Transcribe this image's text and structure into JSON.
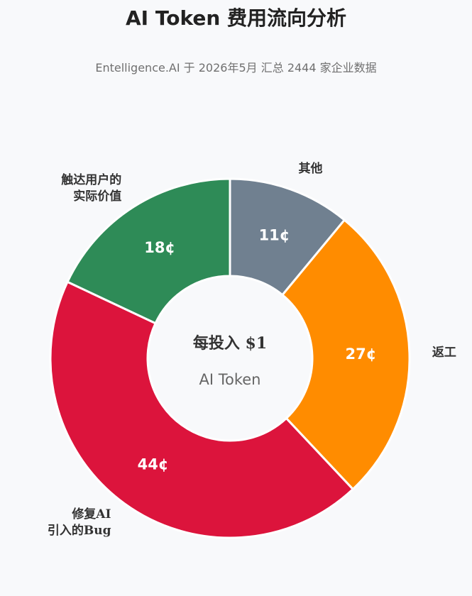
{
  "chart_data": {
    "type": "pie",
    "title": "AI Token 费用流向分析",
    "subtitle": "Entelligence.AI 于 2026年5月 汇总 2444 家企业数据",
    "center_label": "每投入 $1",
    "center_sublabel": "AI Token",
    "unit": "¢",
    "slices": [
      {
        "label": [
          "其他"
        ],
        "value": 11,
        "display": "11¢",
        "color": "#708090"
      },
      {
        "label": [
          "返工"
        ],
        "value": 27,
        "display": "27¢",
        "color": "#ff8c00"
      },
      {
        "label": [
          "修复AI",
          "引入的Bug"
        ],
        "value": 44,
        "display": "44¢",
        "color": "#dc143c"
      },
      {
        "label": [
          "触达用户的",
          "实际价值"
        ],
        "value": 18,
        "display": "18¢",
        "color": "#2e8b57"
      }
    ]
  }
}
